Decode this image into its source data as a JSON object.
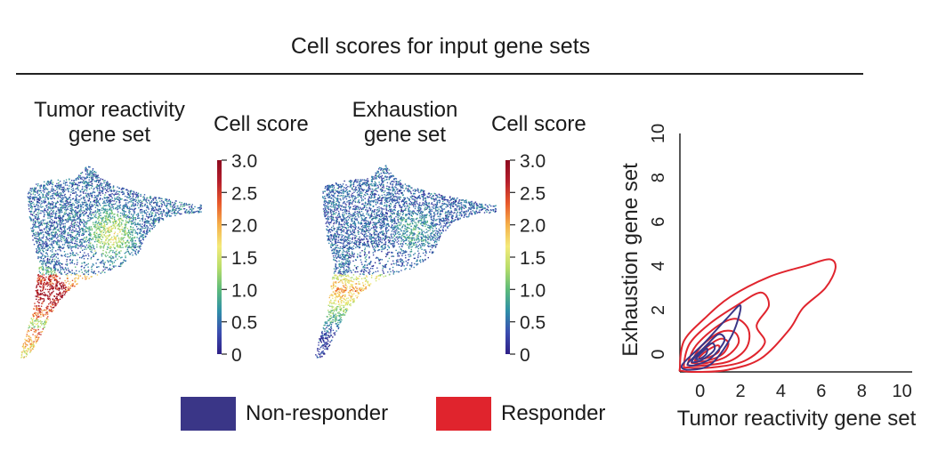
{
  "figure": {
    "title": "Cell scores for input gene sets"
  },
  "umap_panels": [
    {
      "title_line1": "Tumor reactivity",
      "title_line2": "gene set",
      "colorbar_title": "Cell score"
    },
    {
      "title_line1": "Exhaustion",
      "title_line2": "gene set",
      "colorbar_title": "Cell score"
    }
  ],
  "colorbar": {
    "ticks": [
      "3.0",
      "2.5",
      "2.0",
      "1.5",
      "1.0",
      "0.5",
      "0"
    ],
    "range": [
      0,
      3.0
    ],
    "colormap": [
      "#2e1f87",
      "#3b4db0",
      "#2f8fa8",
      "#5dbb7a",
      "#b7dd6a",
      "#f4ea7a",
      "#f5b04a",
      "#e8592b",
      "#b51e2c",
      "#8c0a1e"
    ]
  },
  "legend": {
    "items": [
      {
        "label": "Non-responder",
        "color": "#3a3687"
      },
      {
        "label": "Responder",
        "color": "#e0242d"
      }
    ]
  },
  "chart_data": [
    {
      "type": "scatter",
      "title": "Tumor reactivity gene set",
      "description_of_values": "UMAP embedding colored by cell score (0–3.0); higher scores concentrated in lower-left arm and central region",
      "colorbar_label": "Cell score",
      "color_range": [
        0,
        3.0
      ]
    },
    {
      "type": "scatter",
      "title": "Exhaustion gene set",
      "colorbar_label": "Cell score",
      "color_range": [
        0,
        3.0
      ]
    },
    {
      "type": "area",
      "xlabel": "Tumor reactivity gene set",
      "ylabel": "Exhaustion gene set",
      "xlim": [
        -1,
        10.5
      ],
      "ylim": [
        -0.8,
        10
      ],
      "xticks": [
        "0",
        "2",
        "4",
        "6",
        "8",
        "10"
      ],
      "yticks": [
        "0",
        "2",
        "4",
        "6",
        "8",
        "10"
      ],
      "series": [
        {
          "name": "Non-responder",
          "color": "#3a3687",
          "contours": [
            [
              [
                -0.9,
                -0.5
              ],
              [
                0.2,
                0.5
              ],
              [
                1.3,
                1.6
              ],
              [
                2.0,
                2.2
              ],
              [
                1.6,
                0.9
              ],
              [
                0.6,
                -0.4
              ],
              [
                -0.4,
                -0.7
              ]
            ],
            [
              [
                -0.6,
                -0.4
              ],
              [
                0.2,
                0.3
              ],
              [
                0.9,
                0.9
              ],
              [
                1.2,
                0.6
              ],
              [
                0.5,
                -0.2
              ],
              [
                -0.3,
                -0.5
              ]
            ],
            [
              [
                -0.4,
                -0.3
              ],
              [
                0.1,
                0.2
              ],
              [
                0.6,
                0.5
              ],
              [
                0.7,
                0.2
              ],
              [
                0.2,
                -0.2
              ],
              [
                -0.2,
                -0.35
              ]
            ],
            [
              [
                -0.2,
                -0.2
              ],
              [
                0.1,
                0.1
              ],
              [
                0.35,
                0.25
              ],
              [
                0.3,
                0.0
              ],
              [
                0.0,
                -0.2
              ]
            ]
          ]
        },
        {
          "name": "Responder",
          "color": "#e0242d",
          "contours": [
            [
              [
                -1.0,
                -0.6
              ],
              [
                -0.8,
                0.6
              ],
              [
                0.2,
                1.6
              ],
              [
                1.5,
                2.6
              ],
              [
                3.4,
                3.5
              ],
              [
                5.2,
                4.0
              ],
              [
                6.4,
                4.3
              ],
              [
                6.7,
                3.9
              ],
              [
                6.2,
                3.0
              ],
              [
                5.1,
                2.1
              ],
              [
                4.4,
                1.1
              ],
              [
                3.0,
                -0.2
              ],
              [
                1.4,
                -0.7
              ],
              [
                0.0,
                -0.8
              ],
              [
                -0.9,
                -0.75
              ]
            ],
            [
              [
                -0.8,
                -0.5
              ],
              [
                -0.5,
                0.5
              ],
              [
                0.5,
                1.4
              ],
              [
                1.8,
                2.2
              ],
              [
                3.0,
                2.8
              ],
              [
                3.4,
                2.2
              ],
              [
                2.8,
                1.3
              ],
              [
                3.2,
                0.5
              ],
              [
                2.2,
                -0.3
              ],
              [
                0.6,
                -0.6
              ],
              [
                -0.6,
                -0.6
              ]
            ],
            [
              [
                -0.6,
                -0.4
              ],
              [
                -0.2,
                0.4
              ],
              [
                0.9,
                1.3
              ],
              [
                1.8,
                1.6
              ],
              [
                2.4,
                1.1
              ],
              [
                2.3,
                0.3
              ],
              [
                1.5,
                -0.3
              ],
              [
                0.3,
                -0.5
              ],
              [
                -0.5,
                -0.5
              ]
            ],
            [
              [
                -0.4,
                -0.3
              ],
              [
                0.1,
                0.4
              ],
              [
                1.0,
                1.0
              ],
              [
                1.7,
                1.0
              ],
              [
                1.9,
                0.5
              ],
              [
                1.3,
                -0.1
              ],
              [
                0.3,
                -0.4
              ],
              [
                -0.3,
                -0.4
              ]
            ],
            [
              [
                -0.2,
                -0.2
              ],
              [
                0.3,
                0.3
              ],
              [
                1.0,
                0.7
              ],
              [
                1.4,
                0.5
              ],
              [
                1.1,
                0.0
              ],
              [
                0.3,
                -0.3
              ],
              [
                -0.2,
                -0.3
              ]
            ],
            [
              [
                0.0,
                -0.1
              ],
              [
                0.4,
                0.2
              ],
              [
                0.9,
                0.4
              ],
              [
                0.9,
                0.1
              ],
              [
                0.4,
                -0.15
              ],
              [
                0.0,
                -0.2
              ]
            ]
          ]
        }
      ]
    }
  ]
}
